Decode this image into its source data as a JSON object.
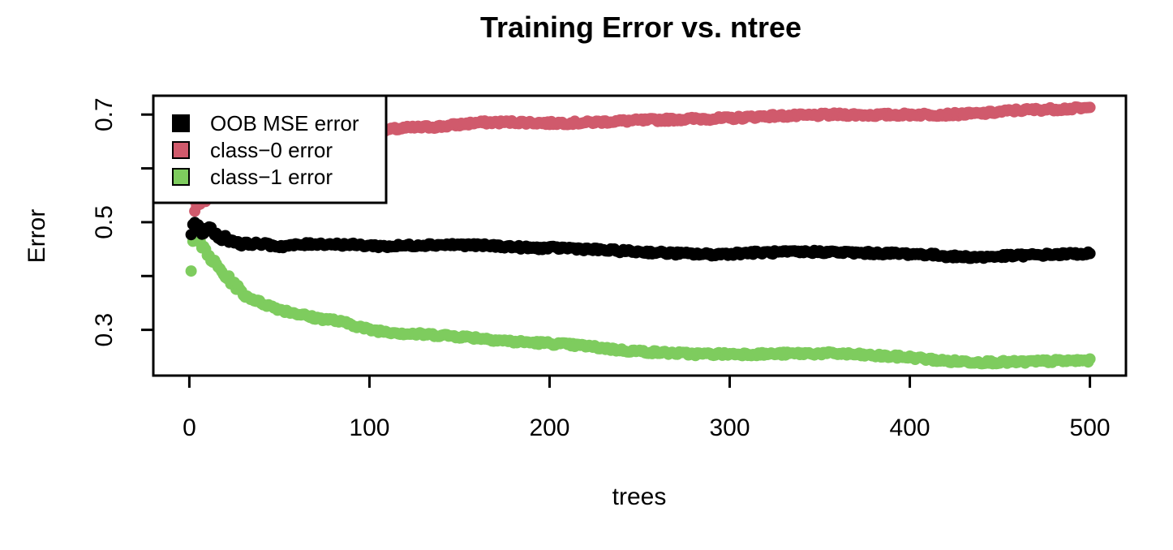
{
  "chart_data": {
    "type": "scatter",
    "title": "Training Error vs. ntree",
    "xlabel": "trees",
    "ylabel": "Error",
    "xlim": [
      -20,
      520
    ],
    "ylim": [
      0.215,
      0.735
    ],
    "x_ticks": [
      0,
      100,
      200,
      300,
      400,
      500
    ],
    "y_ticks": [
      0.3,
      0.5,
      0.7
    ],
    "y_minor_ticks": [
      0.4,
      0.6
    ],
    "n_trees": 500,
    "legend_position": "top-left",
    "grid": false,
    "series": [
      {
        "name": "OOB MSE error",
        "color": "#000000",
        "anchors": [
          [
            1,
            0.48
          ],
          [
            3,
            0.5
          ],
          [
            5,
            0.49
          ],
          [
            8,
            0.48
          ],
          [
            12,
            0.49
          ],
          [
            15,
            0.475
          ],
          [
            20,
            0.47
          ],
          [
            30,
            0.46
          ],
          [
            40,
            0.46
          ],
          [
            50,
            0.455
          ],
          [
            70,
            0.46
          ],
          [
            90,
            0.458
          ],
          [
            110,
            0.455
          ],
          [
            130,
            0.458
          ],
          [
            150,
            0.458
          ],
          [
            170,
            0.456
          ],
          [
            190,
            0.452
          ],
          [
            210,
            0.452
          ],
          [
            230,
            0.448
          ],
          [
            250,
            0.445
          ],
          [
            270,
            0.442
          ],
          [
            290,
            0.44
          ],
          [
            310,
            0.443
          ],
          [
            330,
            0.444
          ],
          [
            350,
            0.445
          ],
          [
            370,
            0.443
          ],
          [
            390,
            0.442
          ],
          [
            410,
            0.44
          ],
          [
            425,
            0.436
          ],
          [
            440,
            0.435
          ],
          [
            460,
            0.438
          ],
          [
            480,
            0.44
          ],
          [
            500,
            0.442
          ]
        ]
      },
      {
        "name": "class−0 error",
        "color": "#d05a6c",
        "anchors": [
          [
            1,
            0.565
          ],
          [
            2,
            0.545
          ],
          [
            3,
            0.52
          ],
          [
            5,
            0.53
          ],
          [
            8,
            0.54
          ],
          [
            12,
            0.555
          ],
          [
            20,
            0.57
          ],
          [
            30,
            0.59
          ],
          [
            40,
            0.61
          ],
          [
            50,
            0.625
          ],
          [
            60,
            0.64
          ],
          [
            70,
            0.652
          ],
          [
            85,
            0.662
          ],
          [
            100,
            0.668
          ],
          [
            120,
            0.675
          ],
          [
            140,
            0.678
          ],
          [
            160,
            0.685
          ],
          [
            180,
            0.686
          ],
          [
            200,
            0.684
          ],
          [
            220,
            0.685
          ],
          [
            240,
            0.688
          ],
          [
            260,
            0.69
          ],
          [
            280,
            0.692
          ],
          [
            300,
            0.693
          ],
          [
            320,
            0.697
          ],
          [
            340,
            0.698
          ],
          [
            360,
            0.7
          ],
          [
            380,
            0.699
          ],
          [
            400,
            0.7
          ],
          [
            420,
            0.7
          ],
          [
            440,
            0.702
          ],
          [
            460,
            0.708
          ],
          [
            480,
            0.71
          ],
          [
            500,
            0.712
          ]
        ]
      },
      {
        "name": "class−1 error",
        "color": "#7ecc5e",
        "anchors": [
          [
            1,
            0.415
          ],
          [
            2,
            0.47
          ],
          [
            4,
            0.475
          ],
          [
            6,
            0.46
          ],
          [
            10,
            0.44
          ],
          [
            15,
            0.42
          ],
          [
            20,
            0.4
          ],
          [
            25,
            0.385
          ],
          [
            30,
            0.365
          ],
          [
            40,
            0.35
          ],
          [
            50,
            0.338
          ],
          [
            60,
            0.33
          ],
          [
            70,
            0.322
          ],
          [
            80,
            0.318
          ],
          [
            90,
            0.31
          ],
          [
            100,
            0.3
          ],
          [
            120,
            0.293
          ],
          [
            140,
            0.29
          ],
          [
            160,
            0.285
          ],
          [
            180,
            0.278
          ],
          [
            200,
            0.275
          ],
          [
            220,
            0.27
          ],
          [
            240,
            0.262
          ],
          [
            260,
            0.258
          ],
          [
            280,
            0.255
          ],
          [
            300,
            0.255
          ],
          [
            320,
            0.255
          ],
          [
            340,
            0.256
          ],
          [
            360,
            0.256
          ],
          [
            380,
            0.252
          ],
          [
            400,
            0.249
          ],
          [
            420,
            0.242
          ],
          [
            440,
            0.24
          ],
          [
            460,
            0.24
          ],
          [
            480,
            0.242
          ],
          [
            500,
            0.243
          ]
        ]
      }
    ]
  }
}
